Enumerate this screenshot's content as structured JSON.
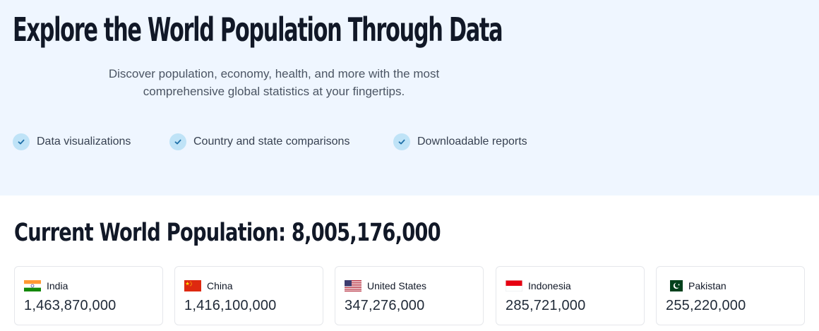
{
  "hero": {
    "title": "Explore the World Population Through Data",
    "subtitle_line1": "Discover population, economy, health, and more with the most",
    "subtitle_line2": "comprehensive global statistics at your fingertips.",
    "features": [
      {
        "label": "Data visualizations",
        "icon": "check-icon"
      },
      {
        "label": "Country and state comparisons",
        "icon": "check-icon"
      },
      {
        "label": "Downloadable reports",
        "icon": "check-icon"
      }
    ],
    "background": "#eff6ff"
  },
  "world": {
    "label": "Current World Population:",
    "value": "8,005,176,000"
  },
  "countries": [
    {
      "name": "India",
      "population": "1,463,870,000",
      "flag": "india-flag-icon"
    },
    {
      "name": "China",
      "population": "1,416,100,000",
      "flag": "china-flag-icon"
    },
    {
      "name": "United States",
      "population": "347,276,000",
      "flag": "us-flag-icon"
    },
    {
      "name": "Indonesia",
      "population": "285,721,000",
      "flag": "indonesia-flag-icon"
    },
    {
      "name": "Pakistan",
      "population": "255,220,000",
      "flag": "pakistan-flag-icon"
    }
  ],
  "colors": {
    "check_badge": "#bfe3f7",
    "check_mark": "#1e6fa8"
  }
}
